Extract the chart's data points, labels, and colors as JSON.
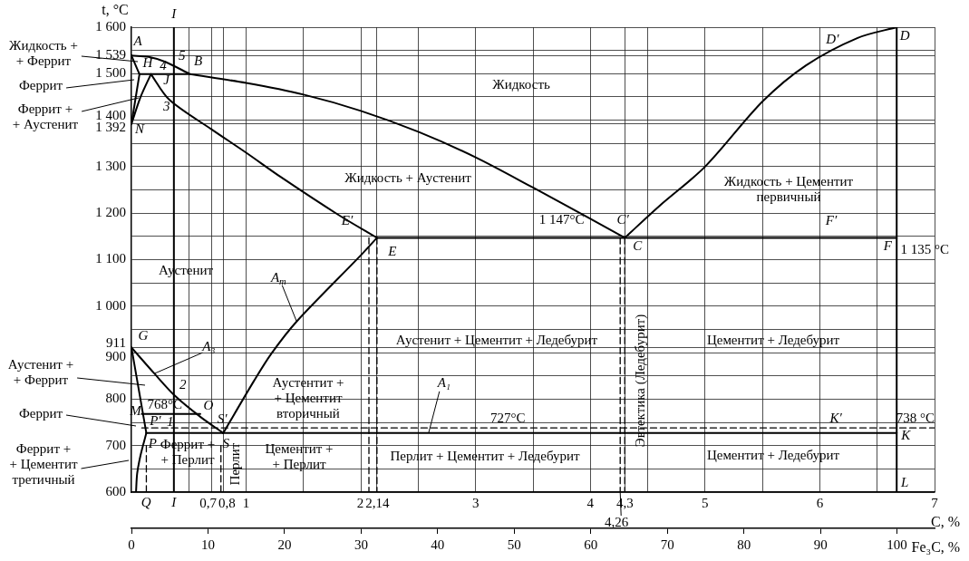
{
  "chart_data": {
    "type": "line",
    "xlabel": "C, %",
    "ylabel": "t, °C",
    "x2label": "Fe₃C, %",
    "xlim": [
      0,
      7
    ],
    "ylim": [
      600,
      1600
    ],
    "x2lim": [
      0,
      104.9
    ],
    "xticks": [
      {
        "value": 0.5,
        "label": null
      },
      {
        "value": 0.7,
        "label": "0,7"
      },
      {
        "value": 0.8,
        "label": "0,8"
      },
      1,
      {
        "value": 1.5,
        "label": null
      },
      2,
      {
        "value": 2.14,
        "label": "2,14"
      },
      {
        "value": 2.5,
        "label": null
      },
      3,
      {
        "value": 3.5,
        "label": null
      },
      4,
      {
        "value": 4.3,
        "label": "4,3"
      },
      {
        "value": 4.5,
        "label": null
      },
      5,
      {
        "value": 5.5,
        "label": null
      },
      6,
      {
        "value": 6.5,
        "label": null
      },
      7
    ],
    "yticks": [
      600,
      {
        "value": 650,
        "label": null
      },
      700,
      {
        "value": 750,
        "label": null
      },
      800,
      {
        "value": 850,
        "label": null
      },
      900,
      911,
      {
        "value": 950,
        "label": null
      },
      {
        "value": 1000,
        "label": "1 000"
      },
      {
        "value": 1050,
        "label": null
      },
      {
        "value": 1100,
        "label": "1 100"
      },
      {
        "value": 1150,
        "label": null
      },
      {
        "value": 1200,
        "label": "1 200"
      },
      {
        "value": 1250,
        "label": null
      },
      {
        "value": 1300,
        "label": "1 300"
      },
      {
        "value": 1350,
        "label": null
      },
      {
        "value": 1392,
        "label": "1 392"
      },
      {
        "value": 1400,
        "label": "1 400"
      },
      {
        "value": 1450,
        "label": null
      },
      {
        "value": 1500,
        "label": "1 500"
      },
      {
        "value": 1539,
        "label": "1 539"
      },
      {
        "value": 1550,
        "label": null
      },
      {
        "value": 1600,
        "label": "1 600"
      }
    ],
    "x2ticks": [
      0,
      10,
      20,
      30,
      40,
      50,
      60,
      70,
      80,
      90,
      100
    ],
    "grid": true,
    "legend": false,
    "marker": "none",
    "line_style": "solid",
    "series": [
      {
        "color": "#000000",
        "x": [
          0,
          0.15,
          0.3,
          0.51
        ],
        "values": [
          1539,
          1536,
          1525,
          1499
        ]
      },
      {
        "color": "#000000",
        "x": [
          0,
          0.07
        ],
        "values": [
          1539,
          1499
        ]
      },
      {
        "color": "#000000",
        "x": [
          0.07,
          0.51
        ],
        "values": [
          1499,
          1499
        ]
      },
      {
        "color": "#000000",
        "x": [
          0,
          0.07
        ],
        "values": [
          1392,
          1499
        ]
      },
      {
        "color": "#000000",
        "x": [
          0,
          0.08,
          0.17
        ],
        "values": [
          1392,
          1450,
          1499
        ]
      },
      {
        "color": "#000000",
        "x": [
          0.51,
          1,
          1.5,
          2,
          2.5,
          3,
          3.5,
          4,
          4.3
        ],
        "values": [
          1499,
          1480,
          1455,
          1420,
          1375,
          1320,
          1255,
          1188,
          1147
        ]
      },
      {
        "color": "#000000",
        "x": [
          0.17,
          0.33,
          0.7,
          1,
          1.3,
          1.8,
          2.14
        ],
        "values": [
          1499,
          1444,
          1380,
          1330,
          1278,
          1197,
          1147
        ]
      },
      {
        "color": "#000000",
        "x": [
          4.3,
          4.6,
          5,
          5.5,
          5.88,
          6.33,
          6.67
        ],
        "values": [
          1147,
          1215,
          1300,
          1440,
          1518,
          1577,
          1600
        ]
      },
      {
        "color": "#000000",
        "x": [
          2.14,
          6.67
        ],
        "values": [
          1147,
          1147
        ]
      },
      {
        "color": "#000000",
        "x": [
          6.67,
          6.67
        ],
        "values": [
          1600,
          600
        ]
      },
      {
        "color": "#000000",
        "x": [
          0.37,
          0.37
        ],
        "values": [
          600,
          1600
        ]
      },
      {
        "color": "#000000",
        "x": [
          0,
          0.2,
          0.38,
          0.6,
          0.8
        ],
        "values": [
          911,
          855,
          807,
          762,
          727
        ]
      },
      {
        "color": "#000000",
        "x": [
          0,
          0.13
        ],
        "values": [
          911,
          727
        ]
      },
      {
        "color": "#000000",
        "x": [
          0.13,
          0.08,
          0.05,
          0.04
        ],
        "values": [
          727,
          680,
          640,
          600
        ]
      },
      {
        "color": "#000000",
        "x": [
          0.8,
          1.07,
          1.22,
          1.44,
          1.99,
          2.14
        ],
        "values": [
          727,
          840,
          898,
          967,
          1107,
          1147
        ]
      },
      {
        "color": "#000000",
        "x": [
          0.13,
          6.67
        ],
        "values": [
          727,
          727
        ]
      },
      {
        "color": "#000000",
        "x": [
          0.09,
          0.6
        ],
        "values": [
          768,
          768
        ]
      },
      {
        "color": "#000000",
        "x": [
          0.09,
          7
        ],
        "values": [
          738,
          738
        ],
        "line_style": "dashed"
      },
      {
        "color": "#000000",
        "x": [
          2.07,
          2.07
        ],
        "values": [
          1147,
          600
        ],
        "line_style": "dashed"
      },
      {
        "color": "#000000",
        "x": [
          2.14,
          2.14
        ],
        "values": [
          1147,
          600
        ],
        "line_style": "dashed"
      },
      {
        "color": "#000000",
        "x": [
          4.26,
          4.26
        ],
        "values": [
          1147,
          600
        ],
        "line_style": "dashed"
      },
      {
        "color": "#000000",
        "x": [
          4.3,
          4.3
        ],
        "values": [
          1147,
          600
        ],
        "line_style": "dashed"
      },
      {
        "color": "#000000",
        "x": [
          0.13,
          0.13
        ],
        "values": [
          700,
          600
        ],
        "line_style": "dashed"
      },
      {
        "color": "#000000",
        "x": [
          0.78,
          0.78
        ],
        "values": [
          700,
          600
        ],
        "line_style": "dashed"
      }
    ],
    "annotations": [
      "Жидкость +\n+ Феррит",
      {
        "text": "Феррит",
        "x": 0.024,
        "y": 1487
      },
      {
        "text": "Феррит +\n+ Аустенит",
        "x": 0.063,
        "y": 1448
      },
      "Аустенит +\n+ Феррит",
      "Феррит",
      "Феррит +\n+ Цементит\nтретичный",
      "Жидкость",
      "Жидкость + Аустенит",
      "Жидкость + Цементит\nпервичный",
      "Аустенит",
      "Аустенит + Цементит + Ледебурит",
      "Цементит + Ледебурит",
      "Аустентит +\n+ Цементит\nвторичный",
      "Перлит + Цементит + Ледебурит",
      "Цементит +\n+ Перлит",
      "Цементит + Ледебурит",
      "Феррит +\n+ Перлит",
      "Перлит",
      "Эвтектика (Ледебурит)",
      {
        "text": "A",
        "x": 0,
        "y": 1539
      },
      {
        "text": "H",
        "x": 0.07,
        "y": 1499
      },
      {
        "text": "4",
        "x": 0.26,
        "y": 1499
      },
      {
        "text": "5",
        "x": 0.37,
        "y": 1518
      },
      {
        "text": "B",
        "x": 0.51,
        "y": 1499
      },
      {
        "text": "J",
        "x": 0.17,
        "y": 1499
      },
      {
        "text": "3",
        "x": 0.37,
        "y": 1437
      },
      {
        "text": "N",
        "x": 0,
        "y": 1392
      },
      {
        "text": "I",
        "x": 0.37,
        "y": 1600
      },
      {
        "text": "I",
        "x": 0.37,
        "y": 600
      },
      {
        "text": "Q",
        "x": 0.04,
        "y": 600
      },
      {
        "text": "E′",
        "x": 2.07,
        "y": 1147
      },
      {
        "text": "E",
        "x": 2.14,
        "y": 1147
      },
      {
        "text": "1 147°C",
        "x": 3.75,
        "y": 1147
      },
      {
        "text": "C′",
        "x": 4.26,
        "y": 1147
      },
      {
        "text": "C",
        "x": 4.3,
        "y": 1147
      },
      {
        "text": "D′",
        "x": 6.11,
        "y": 1548
      },
      {
        "text": "D",
        "x": 6.67,
        "y": 1600
      },
      {
        "text": "F′",
        "x": 6.1,
        "y": 1147
      },
      {
        "text": "F",
        "x": 6.67,
        "y": 1147
      },
      {
        "text": "1 135 °C",
        "x": 6.67,
        "y": 1147
      },
      {
        "text": "G",
        "x": 0,
        "y": 911
      },
      {
        "text": "A₃",
        "x": 0.2,
        "y": 855
      },
      {
        "text": "2",
        "x": 0.37,
        "y": 811
      },
      {
        "text": "O",
        "x": 0.6,
        "y": 768
      },
      {
        "text": "768°C",
        "x": 0.29,
        "y": 768
      },
      {
        "text": "M",
        "x": 0.09,
        "y": 768
      },
      {
        "text": "P′",
        "x": 0.09,
        "y": 738
      },
      {
        "text": "1",
        "x": 0.37,
        "y": 738
      },
      {
        "text": "S′",
        "x": 0.83,
        "y": 738
      },
      {
        "text": "S",
        "x": 0.8,
        "y": 727
      },
      {
        "text": "P",
        "x": 0.13,
        "y": 727
      },
      {
        "text": "A$_{m}$",
        "x": 1.44,
        "y": 967
      },
      {
        "text": "A₁",
        "x": 2.59,
        "y": 727
      },
      {
        "text": "727°C",
        "x": 3.28,
        "y": 727
      },
      {
        "text": "K′",
        "x": 6.14,
        "y": 738
      },
      {
        "text": "738 °C",
        "x": 7,
        "y": 738
      },
      {
        "text": "K",
        "x": 6.67,
        "y": 727
      },
      {
        "text": "L",
        "x": 6.67,
        "y": 600
      },
      {
        "text": "4,26",
        "x": 4.26,
        "y": 600
      }
    ]
  }
}
